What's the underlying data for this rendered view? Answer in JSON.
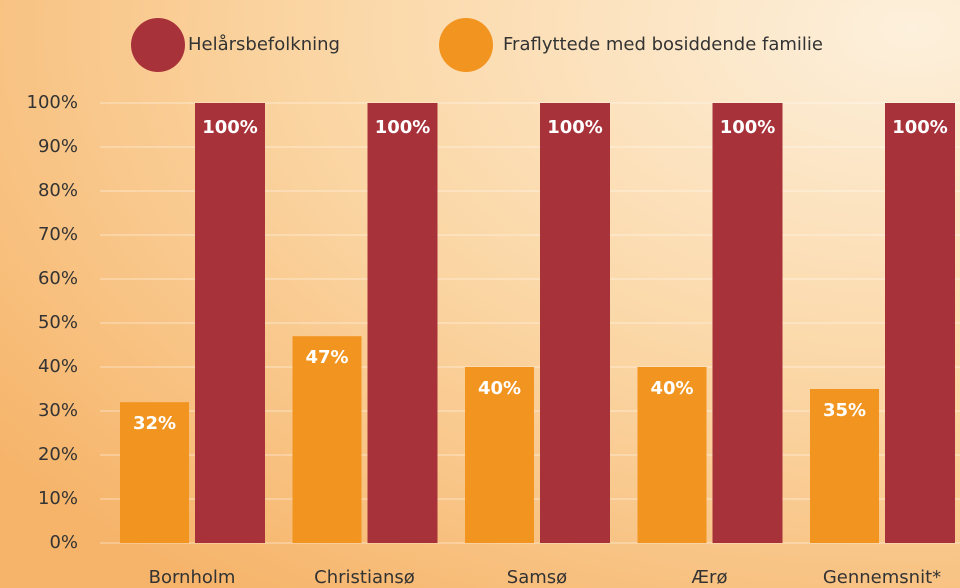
{
  "chart_data": {
    "type": "bar",
    "categories": [
      "Bornholm",
      "Christiansø",
      "Samsø",
      "Ærø",
      "Gennemsnit*"
    ],
    "series": [
      {
        "name": "Fraflyttede med bosiddende familie",
        "color": "#f29420",
        "values": [
          32,
          47,
          40,
          40,
          35
        ],
        "value_labels": [
          "32%",
          "47%",
          "40%",
          "40%",
          "35%"
        ]
      },
      {
        "name": "Helårsbefolkning",
        "color": "#a8323a",
        "values": [
          100,
          100,
          100,
          100,
          100
        ],
        "value_labels": [
          "100%",
          "100%",
          "100%",
          "100%",
          "100%"
        ]
      }
    ],
    "ylim": [
      0,
      100
    ],
    "yticks": [
      {
        "value": 0,
        "label": "0%"
      },
      {
        "value": 10,
        "label": "10%"
      },
      {
        "value": 20,
        "label": "20%"
      },
      {
        "value": 30,
        "label": "30%"
      },
      {
        "value": 40,
        "label": "40%"
      },
      {
        "value": 50,
        "label": "50%"
      },
      {
        "value": 60,
        "label": "60%"
      },
      {
        "value": 70,
        "label": "70%"
      },
      {
        "value": 80,
        "label": "80%"
      },
      {
        "value": 90,
        "label": "90%"
      },
      {
        "value": 100,
        "label": "100%"
      }
    ],
    "grid": true
  }
}
